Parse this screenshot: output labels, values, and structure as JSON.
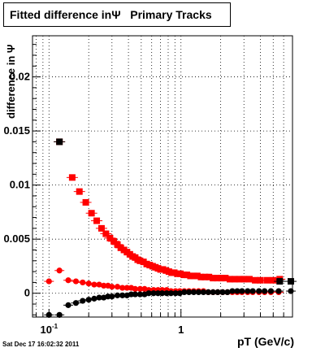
{
  "chart_data": {
    "type": "scatter",
    "title": "Fitted difference inΨ   Primary Tracks",
    "xlabel": "pT (GeV/c)",
    "ylabel": "difference in Ψ",
    "x_scale": "log",
    "xlim": [
      0.075,
      7.0
    ],
    "ylim": [
      -0.0022,
      0.0238
    ],
    "grid": true,
    "x_tick_labels": [
      {
        "value": 0.1,
        "base": "10",
        "exp": "-1"
      },
      {
        "value": 1,
        "base": "1",
        "exp": ""
      }
    ],
    "y_tick_labels": [
      {
        "value": 0,
        "label": "0"
      },
      {
        "value": 0.005,
        "label": "0.005"
      },
      {
        "value": 0.01,
        "label": "0.01"
      },
      {
        "value": 0.015,
        "label": "0.015"
      },
      {
        "value": 0.02,
        "label": "0.02"
      }
    ],
    "series": [
      {
        "color": "#ff0000",
        "marker": "square",
        "x": [
          0.12,
          0.15,
          0.17,
          0.19,
          0.21,
          0.23,
          0.25,
          0.27,
          0.29,
          0.31,
          0.33,
          0.35,
          0.37,
          0.39,
          0.41,
          0.43,
          0.45,
          0.47,
          0.49,
          0.52,
          0.55,
          0.58,
          0.61,
          0.64,
          0.67,
          0.7,
          0.73,
          0.77,
          0.81,
          0.85,
          0.89,
          0.94,
          0.99,
          1.05,
          1.11,
          1.18,
          1.25,
          1.33,
          1.42,
          1.52,
          1.63,
          1.75,
          1.88,
          2.02,
          2.17,
          2.35,
          2.55,
          2.77,
          3.0,
          3.3,
          3.65,
          4.0,
          4.5,
          5.0,
          5.6
        ],
        "y": [
          0.014,
          0.0107,
          0.0094,
          0.0084,
          0.0074,
          0.0067,
          0.006,
          0.0055,
          0.0051,
          0.0048,
          0.0045,
          0.0042,
          0.004,
          0.0038,
          0.0036,
          0.0034,
          0.0033,
          0.0031,
          0.003,
          0.0029,
          0.0027,
          0.0026,
          0.0025,
          0.0024,
          0.0023,
          0.0022,
          0.0022,
          0.0021,
          0.002,
          0.0019,
          0.0019,
          0.0018,
          0.0018,
          0.0017,
          0.0017,
          0.0016,
          0.0016,
          0.0016,
          0.0015,
          0.0015,
          0.0015,
          0.0014,
          0.0014,
          0.0014,
          0.0014,
          0.0013,
          0.0013,
          0.0013,
          0.0013,
          0.0013,
          0.0012,
          0.0012,
          0.0012,
          0.0012,
          0.0013
        ]
      },
      {
        "color": "#000000",
        "marker": "square",
        "x": [
          0.12,
          5.6,
          6.8
        ],
        "y": [
          0.014,
          0.0011,
          0.0011
        ]
      },
      {
        "color": "#ff0000",
        "marker": "circle",
        "x": [
          0.1,
          0.12,
          0.14,
          0.16,
          0.18,
          0.2,
          0.22,
          0.24,
          0.26,
          0.28,
          0.3,
          0.33,
          0.36,
          0.39,
          0.42,
          0.45,
          0.49,
          0.53,
          0.57,
          0.62,
          0.67,
          0.72,
          0.78,
          0.84,
          0.91,
          0.98,
          1.06,
          1.15,
          1.25,
          1.36,
          1.48,
          1.61,
          1.75,
          1.9,
          2.07,
          2.25,
          2.45,
          2.67,
          2.9,
          3.2,
          3.5,
          3.9,
          4.3,
          4.8,
          5.5
        ],
        "y": [
          0.0011,
          0.0021,
          0.0012,
          0.0011,
          0.001,
          0.0009,
          0.0008,
          0.0008,
          0.0007,
          0.0007,
          0.0006,
          0.0006,
          0.0005,
          0.0005,
          0.0005,
          0.0004,
          0.0004,
          0.0004,
          0.0003,
          0.0003,
          0.0003,
          0.0003,
          0.0003,
          0.0002,
          0.0002,
          0.0002,
          0.0002,
          0.0002,
          0.0002,
          0.0002,
          0.0002,
          0.0001,
          0.0001,
          0.0001,
          0.0001,
          0.0001,
          0.0001,
          0.0001,
          0.0001,
          0.0001,
          0.0001,
          0.0001,
          0.0001,
          0.0001,
          0.0001
        ]
      },
      {
        "color": "#000000",
        "marker": "circle",
        "x": [
          0.1,
          0.12,
          0.14,
          0.16,
          0.18,
          0.2,
          0.22,
          0.24,
          0.26,
          0.28,
          0.3,
          0.33,
          0.36,
          0.39,
          0.42,
          0.45,
          0.49,
          0.53,
          0.57,
          0.62,
          0.67,
          0.72,
          0.78,
          0.84,
          0.91,
          0.98,
          1.06,
          1.15,
          1.25,
          1.36,
          1.48,
          1.61,
          1.75,
          1.9,
          2.07,
          2.25,
          2.45,
          2.67,
          2.9,
          3.2,
          3.5,
          3.9,
          4.3,
          4.8,
          5.5,
          6.8
        ],
        "y": [
          -0.002,
          -0.002,
          -0.0011,
          -0.0009,
          -0.0007,
          -0.0006,
          -0.0005,
          -0.0004,
          -0.0004,
          -0.0003,
          -0.0003,
          -0.0002,
          -0.0002,
          -0.0002,
          -0.0001,
          -0.0001,
          -0.0001,
          -0.0001,
          0.0,
          0.0,
          0.0,
          0.0,
          0.0,
          0.0,
          0.0,
          0.0,
          0.0001,
          0.0001,
          0.0001,
          0.0001,
          0.0001,
          0.0001,
          0.0001,
          0.0001,
          0.0001,
          0.0001,
          0.0002,
          0.0002,
          0.0002,
          0.0002,
          0.0002,
          0.0002,
          0.0002,
          0.0002,
          0.0002,
          0.0002
        ]
      }
    ]
  },
  "footer": {
    "timestamp": "Sat Dec 17 16:02:32 2011"
  }
}
